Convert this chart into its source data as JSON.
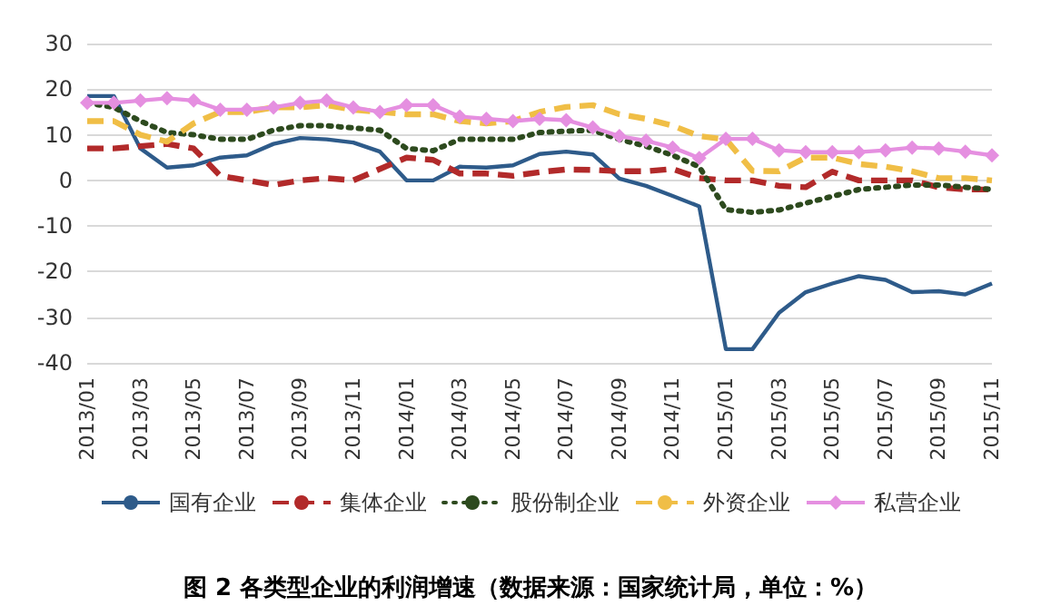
{
  "chart_data": {
    "type": "line",
    "categories": [
      "2013/01",
      null,
      "2013/03",
      null,
      "2013/05",
      null,
      "2013/07",
      null,
      "2013/09",
      null,
      "2013/11",
      null,
      "2014/01",
      null,
      "2014/03",
      null,
      "2014/05",
      null,
      "2014/07",
      null,
      "2014/09",
      null,
      "2014/11",
      null,
      "2015/01",
      null,
      "2015/03",
      null,
      "2015/05",
      null,
      "2015/07",
      null,
      "2015/09",
      null,
      "2015/11"
    ],
    "ylim": [
      -40,
      30
    ],
    "yticks": [
      -40,
      -30,
      -20,
      -10,
      0,
      10,
      20,
      30
    ],
    "grid": "y",
    "legend": "bottom",
    "annotations": [
      "图 2 各类型企业的利润增速（数据来源：国家统计局，单位：%）"
    ],
    "series": [
      {
        "name": "国有企业",
        "color": "#2e5b8a",
        "line_style": "solid",
        "marker": "none",
        "values": [
          18.5,
          18.5,
          7,
          2.8,
          3.3,
          5,
          5.5,
          8,
          9.3,
          9,
          8.3,
          6.3,
          0,
          0,
          3,
          2.8,
          3.3,
          5.8,
          6.3,
          5.7,
          0.4,
          -1.2,
          -3.4,
          -5.7,
          -37,
          -37,
          -29,
          -24.5,
          -22.6,
          -21,
          -21.8,
          -24.5,
          -24.3,
          -25,
          -22.6
        ]
      },
      {
        "name": "集体企业",
        "color": "#b22a2a",
        "line_style": "dashed",
        "marker": "none",
        "values": [
          7,
          7,
          7.5,
          8,
          7,
          1,
          0,
          -1,
          0,
          0.5,
          0,
          2.5,
          5,
          4.5,
          1.5,
          1.5,
          1,
          1.8,
          2.4,
          2.3,
          2,
          2,
          2.5,
          0.5,
          0,
          0,
          -1.2,
          -1.5,
          1.9,
          0,
          0,
          0,
          -1.5,
          -2,
          -2
        ]
      },
      {
        "name": "股份制企业",
        "color": "#2d4a1e",
        "line_style": "dotted",
        "marker": "none",
        "values": [
          17,
          16,
          13,
          10.5,
          10,
          9,
          9,
          11,
          12,
          12,
          11.5,
          11,
          7,
          6.5,
          9,
          9,
          9,
          10.5,
          10.8,
          11,
          9,
          7.5,
          5.5,
          3,
          -6.4,
          -7,
          -6.5,
          -5,
          -3.5,
          -2,
          -1.5,
          -1,
          -1,
          -1.5,
          -2
        ]
      },
      {
        "name": "外资企业",
        "color": "#f0be46",
        "line_style": "dashed",
        "marker": "none",
        "values": [
          13,
          13,
          10,
          8.5,
          12.5,
          15,
          15,
          16,
          16,
          16.5,
          15.5,
          15,
          14.5,
          14.5,
          13,
          12.5,
          13,
          15,
          16.1,
          16.5,
          14.5,
          13.5,
          12,
          9.7,
          9,
          2.1,
          2,
          5,
          5,
          3.6,
          3,
          2,
          0.5,
          0.5,
          0
        ]
      },
      {
        "name": "私营企业",
        "color": "#e58fe0",
        "line_style": "solid",
        "marker": "diamond",
        "values": [
          17,
          17,
          17.5,
          18,
          17.5,
          15.5,
          15.5,
          16,
          17,
          17.5,
          16,
          15,
          16.5,
          16.5,
          14,
          13.5,
          13,
          13.5,
          13.2,
          11.6,
          9.7,
          8.7,
          7.2,
          4.9,
          9.1,
          9.1,
          6.6,
          6.2,
          6.2,
          6.2,
          6.6,
          7.2,
          7,
          6.3,
          5.5
        ]
      }
    ]
  }
}
